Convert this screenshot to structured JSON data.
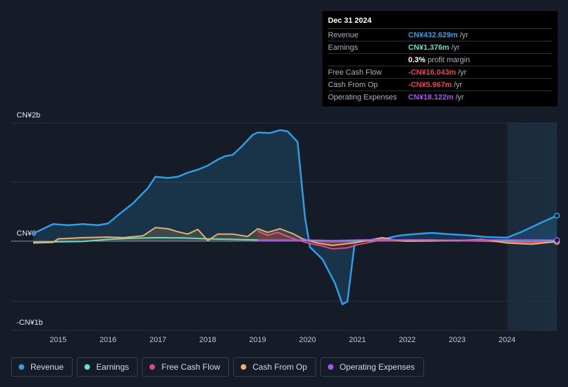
{
  "tooltip": {
    "date": "Dec 31 2024",
    "rows": [
      {
        "label": "Revenue",
        "value": "CN¥432.629m",
        "unit": "/yr",
        "color": "#2e9ee8"
      },
      {
        "label": "Earnings",
        "value": "CN¥1.376m",
        "unit": "/yr",
        "color": "#5ee2cb"
      },
      {
        "label": "",
        "value": "0.3%",
        "unit": "profit margin",
        "color": "#ffffff"
      },
      {
        "label": "Free Cash Flow",
        "value": "-CN¥16.043m",
        "unit": "/yr",
        "color": "#e8434f"
      },
      {
        "label": "Cash From Op",
        "value": "-CN¥5.967m",
        "unit": "/yr",
        "color": "#e8434f"
      },
      {
        "label": "Operating Expenses",
        "value": "CN¥18.122m",
        "unit": "/yr",
        "color": "#a855f7"
      }
    ]
  },
  "legend": [
    {
      "label": "Revenue",
      "color": "#2e9ee8"
    },
    {
      "label": "Earnings",
      "color": "#5ee2cb"
    },
    {
      "label": "Free Cash Flow",
      "color": "#d94a8c"
    },
    {
      "label": "Cash From Op",
      "color": "#e8b06a"
    },
    {
      "label": "Operating Expenses",
      "color": "#a855f7"
    }
  ],
  "chart_data": {
    "type": "area",
    "unit": "CN¥ millions",
    "ylim": [
      -1000,
      2000
    ],
    "y_tick_labels": [
      {
        "value": 2000,
        "label": "CN¥2b"
      },
      {
        "value": 0,
        "label": "CN¥0"
      },
      {
        "value": -1000,
        "label": "-CN¥1b"
      }
    ],
    "x_ticks": [
      2015,
      2016,
      2017,
      2018,
      2019,
      2020,
      2021,
      2022,
      2023,
      2024
    ],
    "xlim": [
      2014.5,
      2025.0
    ],
    "forecast_start": 2024.0,
    "series": [
      {
        "name": "Revenue",
        "color": "#2e9ee8",
        "fill": true,
        "points": [
          [
            2014.5,
            130
          ],
          [
            2014.9,
            290
          ],
          [
            2015.2,
            270
          ],
          [
            2015.5,
            290
          ],
          [
            2015.8,
            270
          ],
          [
            2016.0,
            300
          ],
          [
            2016.2,
            440
          ],
          [
            2016.5,
            640
          ],
          [
            2016.8,
            900
          ],
          [
            2016.95,
            1090
          ],
          [
            2017.2,
            1070
          ],
          [
            2017.4,
            1090
          ],
          [
            2017.6,
            1160
          ],
          [
            2017.8,
            1210
          ],
          [
            2018.0,
            1280
          ],
          [
            2018.2,
            1380
          ],
          [
            2018.35,
            1440
          ],
          [
            2018.5,
            1460
          ],
          [
            2018.7,
            1620
          ],
          [
            2018.9,
            1800
          ],
          [
            2019.0,
            1840
          ],
          [
            2019.25,
            1830
          ],
          [
            2019.45,
            1880
          ],
          [
            2019.6,
            1860
          ],
          [
            2019.8,
            1680
          ],
          [
            2019.95,
            400
          ],
          [
            2020.05,
            -100
          ],
          [
            2020.3,
            -300
          ],
          [
            2020.55,
            -700
          ],
          [
            2020.7,
            -1050
          ],
          [
            2020.8,
            -1000
          ],
          [
            2020.95,
            0
          ],
          [
            2021.2,
            20
          ],
          [
            2021.5,
            30
          ],
          [
            2021.8,
            90
          ],
          [
            2022.0,
            110
          ],
          [
            2022.3,
            130
          ],
          [
            2022.5,
            140
          ],
          [
            2022.8,
            120
          ],
          [
            2023.2,
            100
          ],
          [
            2023.6,
            70
          ],
          [
            2024.0,
            60
          ],
          [
            2024.3,
            160
          ],
          [
            2024.7,
            320
          ],
          [
            2025.0,
            432.629
          ]
        ]
      },
      {
        "name": "Earnings",
        "color": "#5ee2cb",
        "fill": false,
        "points": [
          [
            2014.5,
            -20
          ],
          [
            2015.0,
            -10
          ],
          [
            2015.5,
            -5
          ],
          [
            2016.0,
            30
          ],
          [
            2016.5,
            50
          ],
          [
            2017.0,
            60
          ],
          [
            2017.5,
            55
          ],
          [
            2018.0,
            40
          ],
          [
            2018.5,
            30
          ],
          [
            2019.0,
            20
          ],
          [
            2019.5,
            20
          ],
          [
            2020.0,
            10
          ],
          [
            2020.5,
            -10
          ],
          [
            2021.0,
            0
          ],
          [
            2021.5,
            10
          ],
          [
            2022.0,
            20
          ],
          [
            2022.5,
            20
          ],
          [
            2023.0,
            10
          ],
          [
            2023.5,
            5
          ],
          [
            2024.0,
            0
          ],
          [
            2024.5,
            -10
          ],
          [
            2025.0,
            1.376
          ]
        ]
      },
      {
        "name": "Free Cash Flow",
        "color": "#d94a8c",
        "fill": true,
        "points": [
          [
            2019.0,
            170
          ],
          [
            2019.2,
            100
          ],
          [
            2019.4,
            150
          ],
          [
            2019.6,
            80
          ],
          [
            2019.8,
            20
          ],
          [
            2020.0,
            -30
          ],
          [
            2020.3,
            -80
          ],
          [
            2020.5,
            -130
          ],
          [
            2020.8,
            -110
          ],
          [
            2021.0,
            -60
          ],
          [
            2021.3,
            -10
          ],
          [
            2021.5,
            20
          ],
          [
            2022.0,
            0
          ],
          [
            2022.5,
            0
          ],
          [
            2023.0,
            10
          ],
          [
            2023.5,
            0
          ],
          [
            2024.0,
            -10
          ],
          [
            2024.5,
            -20
          ],
          [
            2025.0,
            -16.043
          ]
        ]
      },
      {
        "name": "Cash From Op",
        "color": "#e8b06a",
        "fill": true,
        "points": [
          [
            2014.5,
            -30
          ],
          [
            2014.9,
            -20
          ],
          [
            2015.0,
            40
          ],
          [
            2015.5,
            60
          ],
          [
            2016.0,
            70
          ],
          [
            2016.3,
            60
          ],
          [
            2016.7,
            90
          ],
          [
            2016.95,
            230
          ],
          [
            2017.2,
            210
          ],
          [
            2017.4,
            160
          ],
          [
            2017.6,
            120
          ],
          [
            2017.8,
            200
          ],
          [
            2018.0,
            10
          ],
          [
            2018.2,
            120
          ],
          [
            2018.5,
            120
          ],
          [
            2018.8,
            80
          ],
          [
            2019.0,
            210
          ],
          [
            2019.2,
            150
          ],
          [
            2019.45,
            210
          ],
          [
            2019.7,
            130
          ],
          [
            2019.9,
            40
          ],
          [
            2020.2,
            -30
          ],
          [
            2020.5,
            -70
          ],
          [
            2020.8,
            -40
          ],
          [
            2021.0,
            -20
          ],
          [
            2021.5,
            60
          ],
          [
            2021.8,
            10
          ],
          [
            2022.0,
            0
          ],
          [
            2022.5,
            10
          ],
          [
            2023.0,
            10
          ],
          [
            2023.5,
            30
          ],
          [
            2024.0,
            -30
          ],
          [
            2024.5,
            -50
          ],
          [
            2025.0,
            -5.967
          ]
        ]
      },
      {
        "name": "Operating Expenses",
        "color": "#a855f7",
        "fill": false,
        "points": [
          [
            2019.0,
            10
          ],
          [
            2019.5,
            15
          ],
          [
            2020.0,
            20
          ],
          [
            2020.5,
            10
          ],
          [
            2021.0,
            20
          ],
          [
            2021.5,
            25
          ],
          [
            2022.0,
            20
          ],
          [
            2022.5,
            20
          ],
          [
            2023.0,
            18
          ],
          [
            2023.5,
            20
          ],
          [
            2024.0,
            22
          ],
          [
            2024.5,
            20
          ],
          [
            2025.0,
            18.122
          ]
        ]
      }
    ]
  }
}
